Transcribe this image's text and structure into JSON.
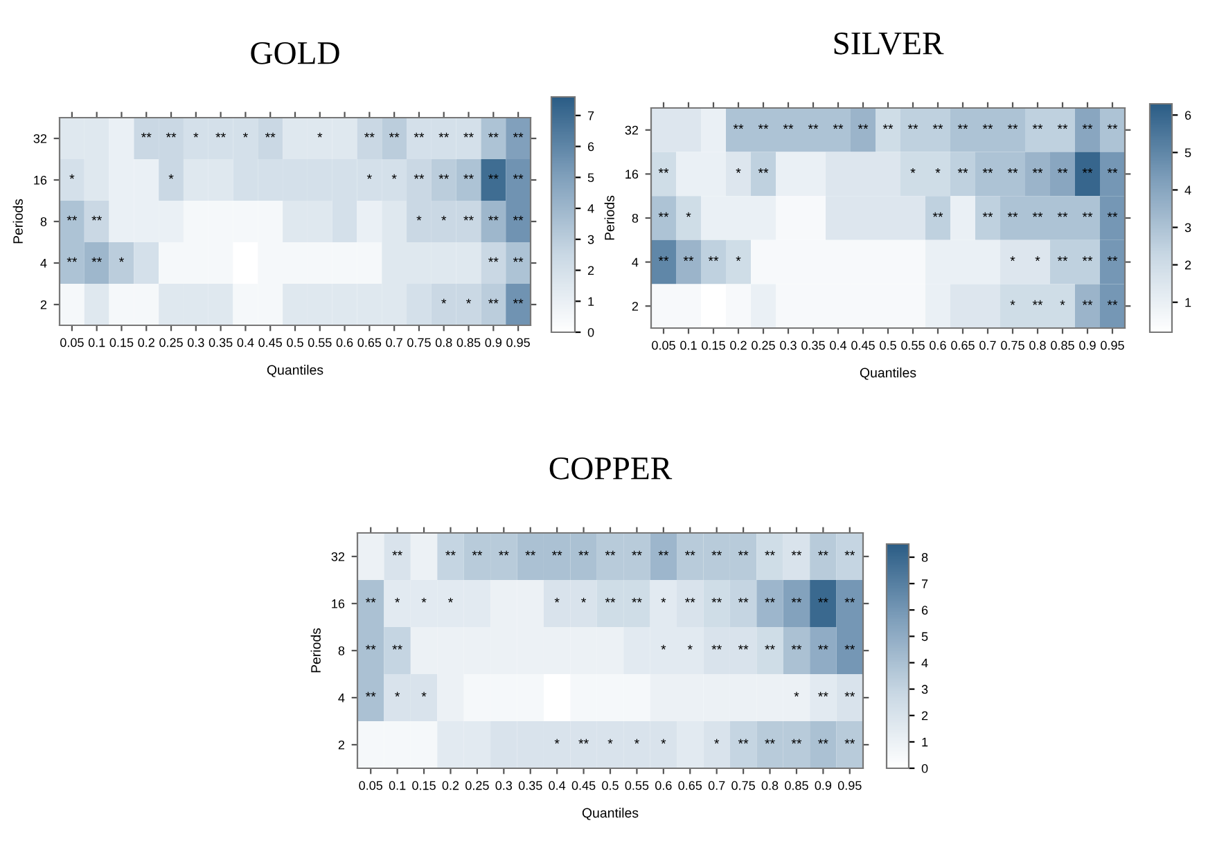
{
  "chart_data": [
    {
      "type": "heatmap",
      "title": "GOLD",
      "xlabel": "Quantiles",
      "ylabel": "Periods",
      "categories": [
        "0.05",
        "0.1",
        "0.15",
        "0.2",
        "0.25",
        "0.3",
        "0.35",
        "0.4",
        "0.45",
        "0.5",
        "0.55",
        "0.6",
        "0.65",
        "0.7",
        "0.75",
        "0.8",
        "0.85",
        "0.9",
        "0.95"
      ],
      "y_categories": [
        "32",
        "16",
        "8",
        "4",
        "2"
      ],
      "cells": [
        [
          1.5,
          1.5,
          1.0,
          2.5,
          2.5,
          2.0,
          2.0,
          2.0,
          2.5,
          1.5,
          1.5,
          1.5,
          2.5,
          3.0,
          2.0,
          2.0,
          2.0,
          3.5,
          5.0
        ],
        [
          2.0,
          1.5,
          1.0,
          1.0,
          2.5,
          1.5,
          1.5,
          2.0,
          2.0,
          2.0,
          2.0,
          2.0,
          2.0,
          2.0,
          2.5,
          3.0,
          3.5,
          7.0,
          5.5
        ],
        [
          3.5,
          2.5,
          1.0,
          1.0,
          1.0,
          0.5,
          0.5,
          0.5,
          0.5,
          1.5,
          1.5,
          2.0,
          1.0,
          1.5,
          2.5,
          2.5,
          2.5,
          4.0,
          5.5
        ],
        [
          3.5,
          4.0,
          3.0,
          2.0,
          0.5,
          0.5,
          0.5,
          0.0,
          0.5,
          0.5,
          0.5,
          0.5,
          0.5,
          1.5,
          1.5,
          1.5,
          1.5,
          2.5,
          3.5
        ],
        [
          0.5,
          1.5,
          0.5,
          0.5,
          1.5,
          1.5,
          1.5,
          0.5,
          0.5,
          1.5,
          1.5,
          1.5,
          1.5,
          1.5,
          2.0,
          2.5,
          2.5,
          3.0,
          5.5
        ]
      ],
      "cell_labels": [
        [
          null,
          null,
          null,
          "**",
          "**",
          "*",
          "**",
          "*",
          "**",
          null,
          "*",
          null,
          "**",
          "**",
          "**",
          "**",
          "**",
          "**",
          "**"
        ],
        [
          "*",
          null,
          null,
          null,
          "*",
          null,
          null,
          null,
          null,
          null,
          null,
          null,
          "*",
          "*",
          "**",
          "**",
          "**",
          "**",
          "**"
        ],
        [
          "**",
          "**",
          null,
          null,
          null,
          null,
          null,
          null,
          null,
          null,
          null,
          null,
          null,
          null,
          "*",
          "*",
          "**",
          "**",
          "**"
        ],
        [
          "**",
          "**",
          "*",
          null,
          null,
          null,
          null,
          null,
          null,
          null,
          null,
          null,
          null,
          null,
          null,
          null,
          null,
          "**",
          "**"
        ],
        [
          null,
          null,
          null,
          null,
          null,
          null,
          null,
          null,
          null,
          null,
          null,
          null,
          null,
          null,
          null,
          "*",
          "*",
          "**",
          "**"
        ]
      ],
      "clim": [
        0,
        7.6
      ],
      "cticks": [
        0,
        1,
        2,
        3,
        4,
        5,
        6,
        7
      ]
    },
    {
      "type": "heatmap",
      "title": "SILVER",
      "xlabel": "Quantiles",
      "ylabel": "Periods",
      "categories": [
        "0.05",
        "0.1",
        "0.15",
        "0.2",
        "0.25",
        "0.3",
        "0.35",
        "0.4",
        "0.45",
        "0.5",
        "0.55",
        "0.6",
        "0.65",
        "0.7",
        "0.75",
        "0.8",
        "0.85",
        "0.9",
        "0.95"
      ],
      "y_categories": [
        "32",
        "16",
        "8",
        "4",
        "2"
      ],
      "cells": [
        [
          1.5,
          1.5,
          1.0,
          3.0,
          3.0,
          3.0,
          3.0,
          3.0,
          3.5,
          2.0,
          2.5,
          2.5,
          3.0,
          3.0,
          3.0,
          2.5,
          2.5,
          4.0,
          3.0
        ],
        [
          2.0,
          1.0,
          1.0,
          1.5,
          2.5,
          1.0,
          1.0,
          1.5,
          1.5,
          1.5,
          2.0,
          2.0,
          2.5,
          3.0,
          3.0,
          3.5,
          4.0,
          6.0,
          4.5
        ],
        [
          3.0,
          2.0,
          1.0,
          1.0,
          1.0,
          0.5,
          0.5,
          1.5,
          1.5,
          1.5,
          1.5,
          2.5,
          1.0,
          2.5,
          3.0,
          3.0,
          3.0,
          3.0,
          4.5
        ],
        [
          5.0,
          3.5,
          2.5,
          2.0,
          0.5,
          0.5,
          0.5,
          0.5,
          0.5,
          0.5,
          0.5,
          1.0,
          1.0,
          1.0,
          1.5,
          1.5,
          2.5,
          2.5,
          4.5
        ],
        [
          0.5,
          0.5,
          0.2,
          0.5,
          1.0,
          0.5,
          0.5,
          0.5,
          0.5,
          0.5,
          0.5,
          1.0,
          1.5,
          1.5,
          2.0,
          2.0,
          2.0,
          3.5,
          4.5
        ]
      ],
      "cell_labels": [
        [
          null,
          null,
          null,
          "**",
          "**",
          "**",
          "**",
          "**",
          "**",
          "**",
          "**",
          "**",
          "**",
          "**",
          "**",
          "**",
          "**",
          "**",
          "**"
        ],
        [
          "**",
          null,
          null,
          "*",
          "**",
          null,
          null,
          null,
          null,
          null,
          "*",
          "*",
          "**",
          "**",
          "**",
          "**",
          "**",
          "**",
          "**"
        ],
        [
          "**",
          "*",
          null,
          null,
          null,
          null,
          null,
          null,
          null,
          null,
          null,
          "**",
          null,
          "**",
          "**",
          "**",
          "**",
          "**",
          "**"
        ],
        [
          "**",
          "**",
          "**",
          "*",
          null,
          null,
          null,
          null,
          null,
          null,
          null,
          null,
          null,
          null,
          "*",
          "*",
          "**",
          "**",
          "**"
        ],
        [
          null,
          null,
          null,
          null,
          null,
          null,
          null,
          null,
          null,
          null,
          null,
          null,
          null,
          null,
          "*",
          "**",
          "*",
          "**",
          "**"
        ]
      ],
      "clim": [
        0.2,
        6.3
      ],
      "cticks": [
        1,
        2,
        3,
        4,
        5,
        6
      ]
    },
    {
      "type": "heatmap",
      "title": "COPPER",
      "xlabel": "Quantiles",
      "ylabel": "Periods",
      "categories": [
        "0.05",
        "0.1",
        "0.15",
        "0.2",
        "0.25",
        "0.3",
        "0.35",
        "0.4",
        "0.45",
        "0.5",
        "0.55",
        "0.6",
        "0.65",
        "0.7",
        "0.75",
        "0.8",
        "0.85",
        "0.9",
        "0.95"
      ],
      "y_categories": [
        "32",
        "16",
        "8",
        "4",
        "2"
      ],
      "cells": [
        [
          1.0,
          2.0,
          1.0,
          3.0,
          3.5,
          3.5,
          4.0,
          4.0,
          4.0,
          3.5,
          3.5,
          4.5,
          3.5,
          3.5,
          3.5,
          2.5,
          2.0,
          3.5,
          3.0
        ],
        [
          4.0,
          1.5,
          1.5,
          1.5,
          1.5,
          1.0,
          1.0,
          2.0,
          2.0,
          2.5,
          2.5,
          1.5,
          2.0,
          2.5,
          3.0,
          4.5,
          5.5,
          8.0,
          6.0
        ],
        [
          4.0,
          3.0,
          1.0,
          1.0,
          1.0,
          1.0,
          1.0,
          1.0,
          1.0,
          1.0,
          1.5,
          1.5,
          1.5,
          2.0,
          2.0,
          2.5,
          4.0,
          5.0,
          6.0
        ],
        [
          4.0,
          2.0,
          2.0,
          1.0,
          0.5,
          0.5,
          0.5,
          0.0,
          0.5,
          0.5,
          0.5,
          1.0,
          1.0,
          1.0,
          1.0,
          1.0,
          1.0,
          1.5,
          2.0
        ],
        [
          0.5,
          0.5,
          0.5,
          1.5,
          1.5,
          2.0,
          2.0,
          2.0,
          2.0,
          2.0,
          2.0,
          2.0,
          1.5,
          2.0,
          3.0,
          3.5,
          3.5,
          4.0,
          3.5
        ]
      ],
      "cell_labels": [
        [
          null,
          "**",
          null,
          "**",
          "**",
          "**",
          "**",
          "**",
          "**",
          "**",
          "**",
          "**",
          "**",
          "**",
          "**",
          "**",
          "**",
          "**",
          "**"
        ],
        [
          "**",
          "*",
          "*",
          "*",
          null,
          null,
          null,
          "*",
          "*",
          "**",
          "**",
          "*",
          "**",
          "**",
          "**",
          "**",
          "**",
          "**",
          "**"
        ],
        [
          "**",
          "**",
          null,
          null,
          null,
          null,
          null,
          null,
          null,
          null,
          null,
          "*",
          "*",
          "**",
          "**",
          "**",
          "**",
          "**",
          "**"
        ],
        [
          "**",
          "*",
          "*",
          null,
          null,
          null,
          null,
          null,
          null,
          null,
          null,
          null,
          null,
          null,
          null,
          null,
          "*",
          "**",
          "**"
        ],
        [
          null,
          null,
          null,
          null,
          null,
          null,
          null,
          "*",
          "**",
          "*",
          "*",
          "*",
          null,
          "*",
          "**",
          "**",
          "**",
          "**",
          "**"
        ]
      ],
      "clim": [
        0,
        8.5
      ],
      "cticks": [
        0,
        1,
        2,
        3,
        4,
        5,
        6,
        7,
        8
      ]
    }
  ]
}
